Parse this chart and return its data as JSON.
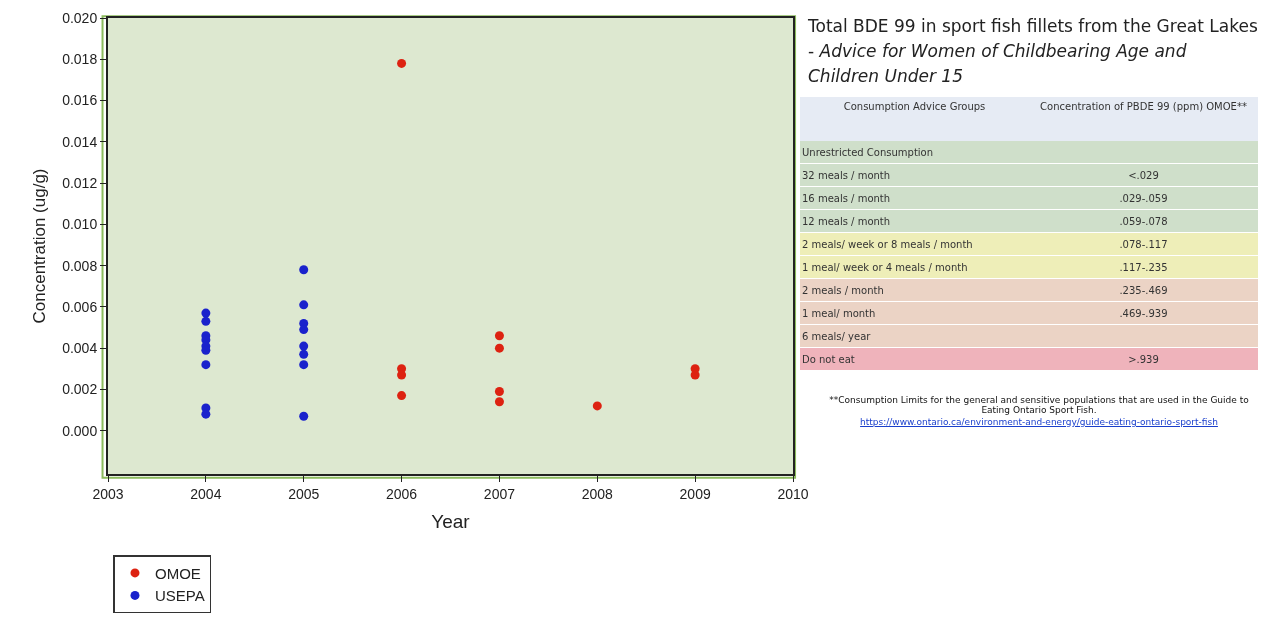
{
  "chart_data": [
    {
      "type": "scatter",
      "xlabel": "Year",
      "ylabel": "Concentration (ug/g)",
      "xlim": [
        2003,
        2010
      ],
      "xticks": [
        2003,
        2004,
        2005,
        2006,
        2007,
        2008,
        2009,
        2010
      ],
      "ylim": [
        -0.0021,
        0.02
      ],
      "yticks": [
        {
          "value": 0,
          "label": "0.000"
        },
        {
          "value": 0.002,
          "label": "0.002"
        },
        {
          "value": 0.004,
          "label": "0.004"
        },
        {
          "value": 0.006,
          "label": "0.006"
        },
        {
          "value": 0.008,
          "label": "0.008"
        },
        {
          "value": 0.01,
          "label": "0.010"
        },
        {
          "value": 0.012,
          "label": "0.012"
        },
        {
          "value": 0.014,
          "label": "0.014"
        },
        {
          "value": 0.016,
          "label": "0.016"
        },
        {
          "value": 0.018,
          "label": "0.018"
        },
        {
          "value": 0.02,
          "label": "0.020"
        }
      ],
      "grid": false,
      "legend": "bottom left",
      "marker": "circle",
      "series": [
        {
          "name": "OMOE",
          "color": "#dd2211",
          "x": [
            2006,
            2006,
            2006,
            2006,
            2007,
            2007,
            2007,
            2007,
            2008,
            2009,
            2009
          ],
          "values": [
            0.0178,
            0.003,
            0.0027,
            0.0017,
            0.0046,
            0.004,
            0.0019,
            0.0014,
            0.0012,
            0.003,
            0.0027
          ]
        },
        {
          "name": "USEPA",
          "color": "#1a22cc",
          "x": [
            2004,
            2004,
            2004,
            2004,
            2004,
            2004,
            2004,
            2004,
            2004,
            2005,
            2005,
            2005,
            2005,
            2005,
            2005,
            2005,
            2005
          ],
          "values": [
            0.0057,
            0.0053,
            0.0046,
            0.0044,
            0.0041,
            0.0039,
            0.0032,
            0.0011,
            0.0008,
            0.0078,
            0.0061,
            0.0052,
            0.0049,
            0.0041,
            0.0037,
            0.0032,
            0.0007
          ]
        }
      ]
    },
    {
      "type": "other",
      "title": "Total BDE 99 in sport fish fillets from the Great Lakes -",
      "subtitle": "Advice for Women of Childbearing Age and Children Under 15",
      "categories": [
        "Unrestricted Consumption",
        "32 meals / month",
        "16 meals / month",
        "12 meals / month",
        "2 meals/ week or 8 meals / month",
        "1 meal/ week or 4 meals / month",
        "2 meals / month",
        "1 meal/ month",
        "6 meals/ year",
        "Do not eat"
      ],
      "value_labels": [
        null,
        "<.029",
        ".029-.059",
        ".059-.078",
        ".078-.117",
        ".117-.235",
        ".235-.469",
        ".469-.939",
        null,
        ">.939"
      ],
      "colors": [
        "#cfdfca",
        "#cfdfca",
        "#cfdfca",
        "#cfdfca",
        "#eeeeb8",
        "#eeeeb8",
        "#ebd3c5",
        "#ebd3c5",
        "#ebd3c5",
        "#efb3bb"
      ],
      "annotations": [
        "Consumption Advice Groups",
        "Concentration of PBDE 99 (ppm) OMOE**",
        "**Consumption Limits for the general and sensitive populations that are used in the Guide to Eating Ontario Sport Fish.",
        "https://www.ontario.ca/environment-and-energy/guide-eating-ontario-sport-fish"
      ]
    }
  ]
}
